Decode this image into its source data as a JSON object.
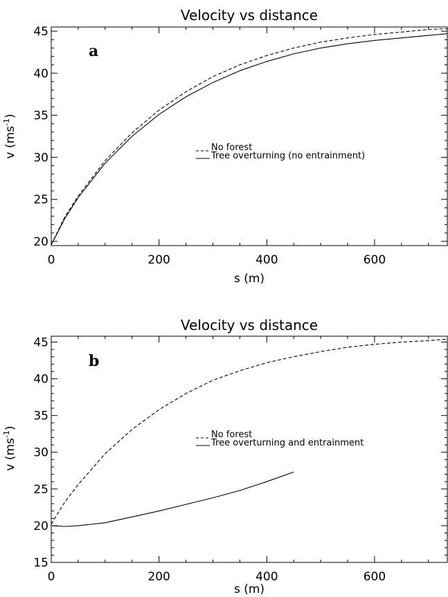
{
  "chart_data": [
    {
      "type": "line",
      "panel_label": "a",
      "title": "Velocity vs distance",
      "xlabel": "s (m)",
      "ylabel": {
        "pre": "v (ms",
        "sup": "-1",
        "post": ")"
      },
      "xlim": [
        0,
        735
      ],
      "ylim": [
        19.5,
        45.5
      ],
      "xticks": [
        "0",
        "200",
        "400",
        "600"
      ],
      "xtick_values": [
        0,
        200,
        400,
        600
      ],
      "yticks": [
        "20",
        "25",
        "30",
        "35",
        "40",
        "45"
      ],
      "ytick_values": [
        20,
        25,
        30,
        35,
        40,
        45
      ],
      "legend": "center-right",
      "series": [
        {
          "name": "No forest",
          "dash": "dashed",
          "x": [
            0,
            25,
            50,
            100,
            150,
            200,
            250,
            300,
            350,
            400,
            450,
            500,
            550,
            600,
            650,
            700,
            735
          ],
          "y": [
            19.6,
            22.9,
            25.4,
            29.6,
            32.9,
            35.6,
            37.8,
            39.6,
            41.0,
            42.1,
            43.0,
            43.7,
            44.2,
            44.6,
            44.9,
            45.2,
            45.3
          ]
        },
        {
          "name": "Tree overturning (no entrainment)",
          "dash": "solid",
          "x": [
            0,
            25,
            50,
            100,
            150,
            200,
            250,
            300,
            350,
            400,
            450,
            500,
            550,
            600,
            650,
            700,
            735
          ],
          "y": [
            19.6,
            22.7,
            25.2,
            29.3,
            32.5,
            35.1,
            37.2,
            38.9,
            40.3,
            41.4,
            42.3,
            43.0,
            43.5,
            43.9,
            44.2,
            44.5,
            44.7
          ]
        }
      ]
    },
    {
      "type": "line",
      "panel_label": "b",
      "title": "Velocity vs distance",
      "xlabel": "s (m)",
      "ylabel": {
        "pre": "v (ms",
        "sup": "-1",
        "post": ")"
      },
      "xlim": [
        0,
        735
      ],
      "ylim": [
        15,
        45.8
      ],
      "xticks": [
        "0",
        "200",
        "400",
        "600"
      ],
      "xtick_values": [
        0,
        200,
        400,
        600
      ],
      "yticks": [
        "15",
        "20",
        "25",
        "30",
        "35",
        "40",
        "45"
      ],
      "ytick_values": [
        15,
        20,
        25,
        30,
        35,
        40,
        45
      ],
      "legend": "center-right",
      "series": [
        {
          "name": "No forest",
          "dash": "dashed",
          "x": [
            0,
            25,
            50,
            100,
            150,
            200,
            250,
            300,
            350,
            400,
            450,
            500,
            550,
            600,
            650,
            700,
            735
          ],
          "y": [
            20.2,
            23.2,
            25.6,
            29.8,
            33.1,
            35.8,
            38.0,
            39.8,
            41.1,
            42.2,
            43.0,
            43.7,
            44.3,
            44.7,
            45.0,
            45.2,
            45.4
          ]
        },
        {
          "name": "Tree overturning and entrainment",
          "dash": "solid",
          "x": [
            0,
            25,
            50,
            100,
            150,
            200,
            250,
            300,
            350,
            400,
            450
          ],
          "y": [
            20.0,
            19.9,
            20.0,
            20.4,
            21.2,
            22.0,
            22.9,
            23.8,
            24.8,
            26.0,
            27.3
          ]
        }
      ]
    }
  ]
}
